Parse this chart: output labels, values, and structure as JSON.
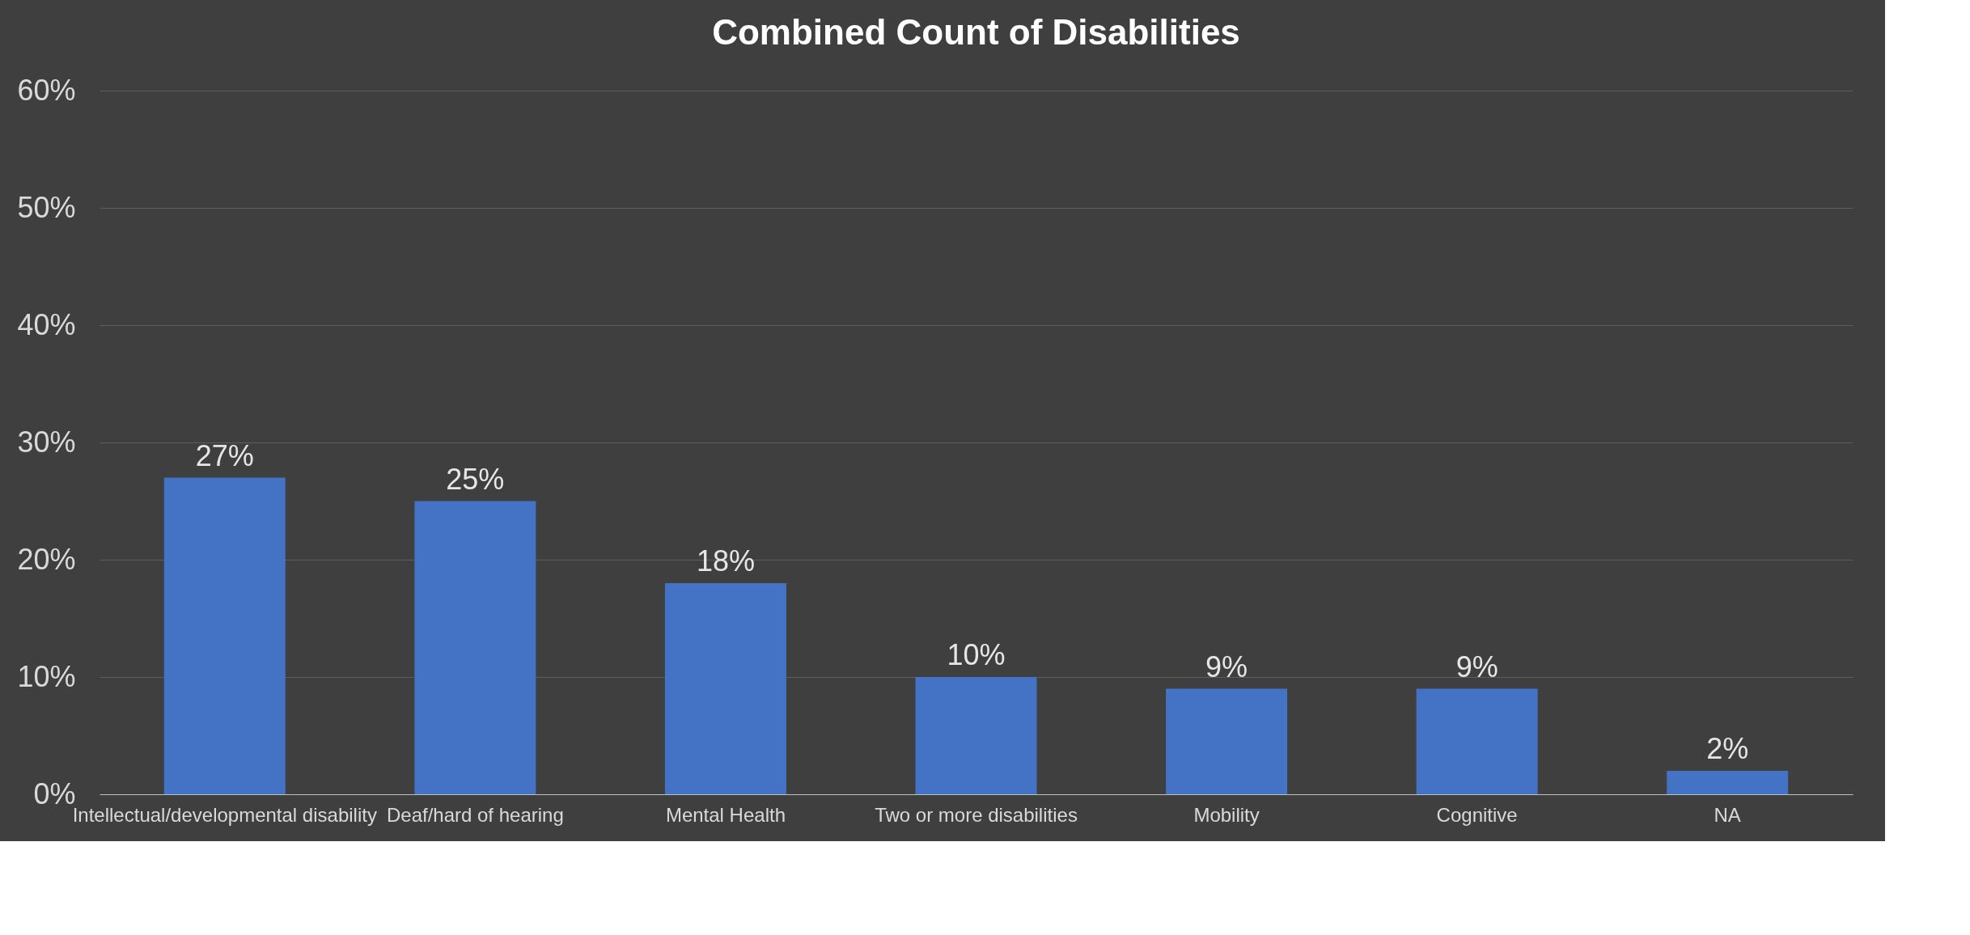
{
  "chart_data": {
    "type": "bar",
    "title": "Combined Count of Disabilities",
    "categories": [
      "Intellectual/developmental disability",
      "Deaf/hard of hearing",
      "Mental Health",
      "Two or more disabilities",
      "Mobility",
      "Cognitive",
      "NA"
    ],
    "values": [
      27,
      25,
      18,
      10,
      9,
      9,
      2
    ],
    "value_labels": [
      "27%",
      "25%",
      "18%",
      "10%",
      "9%",
      "9%",
      "2%"
    ],
    "color": "#4472c4",
    "ylim": [
      0,
      60
    ],
    "yticks": [
      {
        "value": 0,
        "label": "0%"
      },
      {
        "value": 10,
        "label": "10%"
      },
      {
        "value": 20,
        "label": "20%"
      },
      {
        "value": 30,
        "label": "30%"
      },
      {
        "value": 40,
        "label": "40%"
      },
      {
        "value": 50,
        "label": "50%"
      },
      {
        "value": 60,
        "label": "60%"
      }
    ],
    "grid": "y"
  }
}
